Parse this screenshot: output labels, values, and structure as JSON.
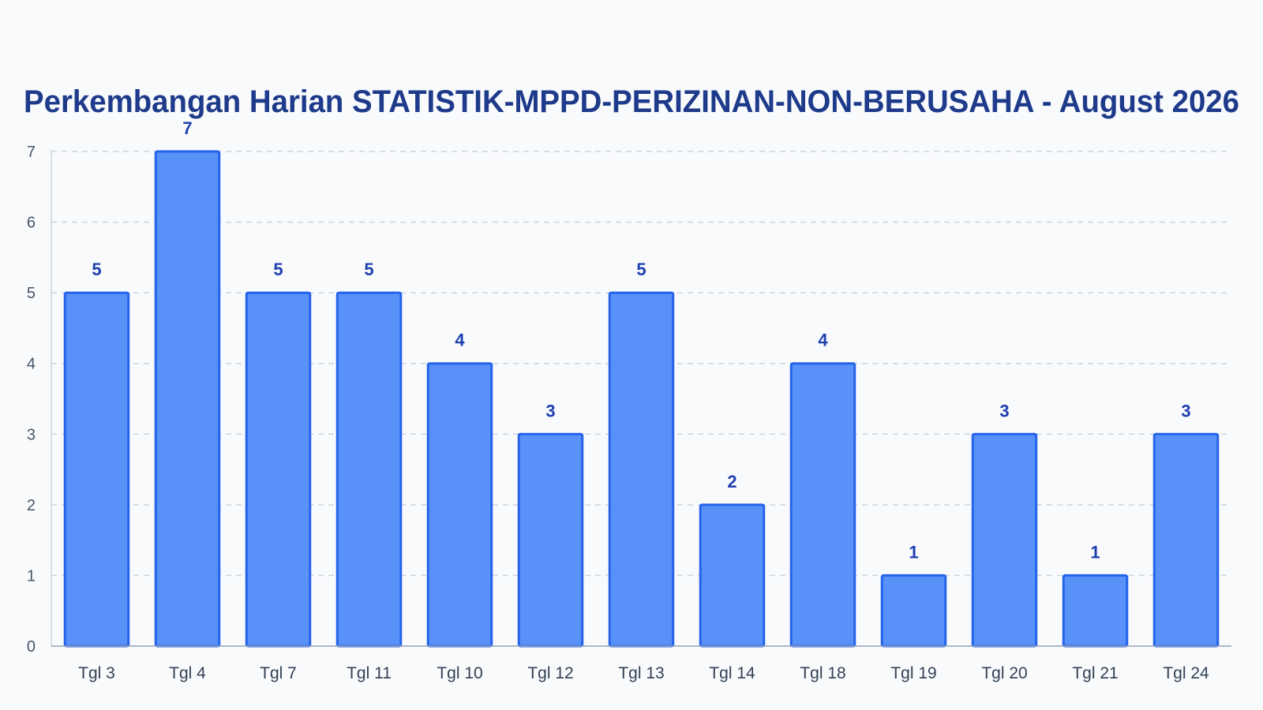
{
  "chart_data": {
    "type": "bar",
    "title": "Perkembangan Harian STATISTIK-MPPD-PERIZINAN-NON-BERUSAHA - August 2026",
    "xlabel": "",
    "ylabel": "",
    "categories": [
      "Tgl 3",
      "Tgl 4",
      "Tgl 7",
      "Tgl 11",
      "Tgl 10",
      "Tgl 12",
      "Tgl 13",
      "Tgl 14",
      "Tgl 18",
      "Tgl 19",
      "Tgl 20",
      "Tgl 21",
      "Tgl 24"
    ],
    "values": [
      5,
      7,
      5,
      5,
      4,
      3,
      5,
      2,
      4,
      1,
      3,
      1,
      3
    ],
    "ylim": [
      0,
      7
    ],
    "yticks": [
      0,
      1,
      2,
      3,
      4,
      5,
      6,
      7
    ],
    "grid": true,
    "legend": "none",
    "colors": {
      "bar_fill": "#5891f7",
      "bar_stroke": "#2563eb",
      "title": "#1e3a8a",
      "data_label": "#1e40af",
      "grid": "#cbd5e1"
    }
  }
}
